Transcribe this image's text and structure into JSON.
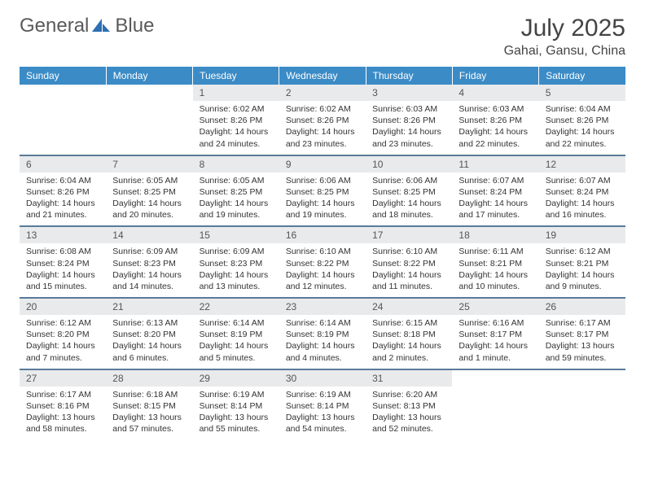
{
  "brand": {
    "part1": "General",
    "part2": "Blue",
    "icon_color": "#2e6fb4"
  },
  "header": {
    "month_title": "July 2025",
    "location": "Gahai, Gansu, China"
  },
  "colors": {
    "header_bg": "#3b8bc6",
    "header_text": "#ffffff",
    "daynum_bg": "#e9eaec",
    "week_divider": "#5a7a9a",
    "body_text": "#333333",
    "title_text": "#444444"
  },
  "day_labels": [
    "Sunday",
    "Monday",
    "Tuesday",
    "Wednesday",
    "Thursday",
    "Friday",
    "Saturday"
  ],
  "weeks": [
    [
      null,
      null,
      {
        "n": "1",
        "sr": "Sunrise: 6:02 AM",
        "ss": "Sunset: 8:26 PM",
        "dl": "Daylight: 14 hours and 24 minutes."
      },
      {
        "n": "2",
        "sr": "Sunrise: 6:02 AM",
        "ss": "Sunset: 8:26 PM",
        "dl": "Daylight: 14 hours and 23 minutes."
      },
      {
        "n": "3",
        "sr": "Sunrise: 6:03 AM",
        "ss": "Sunset: 8:26 PM",
        "dl": "Daylight: 14 hours and 23 minutes."
      },
      {
        "n": "4",
        "sr": "Sunrise: 6:03 AM",
        "ss": "Sunset: 8:26 PM",
        "dl": "Daylight: 14 hours and 22 minutes."
      },
      {
        "n": "5",
        "sr": "Sunrise: 6:04 AM",
        "ss": "Sunset: 8:26 PM",
        "dl": "Daylight: 14 hours and 22 minutes."
      }
    ],
    [
      {
        "n": "6",
        "sr": "Sunrise: 6:04 AM",
        "ss": "Sunset: 8:26 PM",
        "dl": "Daylight: 14 hours and 21 minutes."
      },
      {
        "n": "7",
        "sr": "Sunrise: 6:05 AM",
        "ss": "Sunset: 8:25 PM",
        "dl": "Daylight: 14 hours and 20 minutes."
      },
      {
        "n": "8",
        "sr": "Sunrise: 6:05 AM",
        "ss": "Sunset: 8:25 PM",
        "dl": "Daylight: 14 hours and 19 minutes."
      },
      {
        "n": "9",
        "sr": "Sunrise: 6:06 AM",
        "ss": "Sunset: 8:25 PM",
        "dl": "Daylight: 14 hours and 19 minutes."
      },
      {
        "n": "10",
        "sr": "Sunrise: 6:06 AM",
        "ss": "Sunset: 8:25 PM",
        "dl": "Daylight: 14 hours and 18 minutes."
      },
      {
        "n": "11",
        "sr": "Sunrise: 6:07 AM",
        "ss": "Sunset: 8:24 PM",
        "dl": "Daylight: 14 hours and 17 minutes."
      },
      {
        "n": "12",
        "sr": "Sunrise: 6:07 AM",
        "ss": "Sunset: 8:24 PM",
        "dl": "Daylight: 14 hours and 16 minutes."
      }
    ],
    [
      {
        "n": "13",
        "sr": "Sunrise: 6:08 AM",
        "ss": "Sunset: 8:24 PM",
        "dl": "Daylight: 14 hours and 15 minutes."
      },
      {
        "n": "14",
        "sr": "Sunrise: 6:09 AM",
        "ss": "Sunset: 8:23 PM",
        "dl": "Daylight: 14 hours and 14 minutes."
      },
      {
        "n": "15",
        "sr": "Sunrise: 6:09 AM",
        "ss": "Sunset: 8:23 PM",
        "dl": "Daylight: 14 hours and 13 minutes."
      },
      {
        "n": "16",
        "sr": "Sunrise: 6:10 AM",
        "ss": "Sunset: 8:22 PM",
        "dl": "Daylight: 14 hours and 12 minutes."
      },
      {
        "n": "17",
        "sr": "Sunrise: 6:10 AM",
        "ss": "Sunset: 8:22 PM",
        "dl": "Daylight: 14 hours and 11 minutes."
      },
      {
        "n": "18",
        "sr": "Sunrise: 6:11 AM",
        "ss": "Sunset: 8:21 PM",
        "dl": "Daylight: 14 hours and 10 minutes."
      },
      {
        "n": "19",
        "sr": "Sunrise: 6:12 AM",
        "ss": "Sunset: 8:21 PM",
        "dl": "Daylight: 14 hours and 9 minutes."
      }
    ],
    [
      {
        "n": "20",
        "sr": "Sunrise: 6:12 AM",
        "ss": "Sunset: 8:20 PM",
        "dl": "Daylight: 14 hours and 7 minutes."
      },
      {
        "n": "21",
        "sr": "Sunrise: 6:13 AM",
        "ss": "Sunset: 8:20 PM",
        "dl": "Daylight: 14 hours and 6 minutes."
      },
      {
        "n": "22",
        "sr": "Sunrise: 6:14 AM",
        "ss": "Sunset: 8:19 PM",
        "dl": "Daylight: 14 hours and 5 minutes."
      },
      {
        "n": "23",
        "sr": "Sunrise: 6:14 AM",
        "ss": "Sunset: 8:19 PM",
        "dl": "Daylight: 14 hours and 4 minutes."
      },
      {
        "n": "24",
        "sr": "Sunrise: 6:15 AM",
        "ss": "Sunset: 8:18 PM",
        "dl": "Daylight: 14 hours and 2 minutes."
      },
      {
        "n": "25",
        "sr": "Sunrise: 6:16 AM",
        "ss": "Sunset: 8:17 PM",
        "dl": "Daylight: 14 hours and 1 minute."
      },
      {
        "n": "26",
        "sr": "Sunrise: 6:17 AM",
        "ss": "Sunset: 8:17 PM",
        "dl": "Daylight: 13 hours and 59 minutes."
      }
    ],
    [
      {
        "n": "27",
        "sr": "Sunrise: 6:17 AM",
        "ss": "Sunset: 8:16 PM",
        "dl": "Daylight: 13 hours and 58 minutes."
      },
      {
        "n": "28",
        "sr": "Sunrise: 6:18 AM",
        "ss": "Sunset: 8:15 PM",
        "dl": "Daylight: 13 hours and 57 minutes."
      },
      {
        "n": "29",
        "sr": "Sunrise: 6:19 AM",
        "ss": "Sunset: 8:14 PM",
        "dl": "Daylight: 13 hours and 55 minutes."
      },
      {
        "n": "30",
        "sr": "Sunrise: 6:19 AM",
        "ss": "Sunset: 8:14 PM",
        "dl": "Daylight: 13 hours and 54 minutes."
      },
      {
        "n": "31",
        "sr": "Sunrise: 6:20 AM",
        "ss": "Sunset: 8:13 PM",
        "dl": "Daylight: 13 hours and 52 minutes."
      },
      null,
      null
    ]
  ]
}
